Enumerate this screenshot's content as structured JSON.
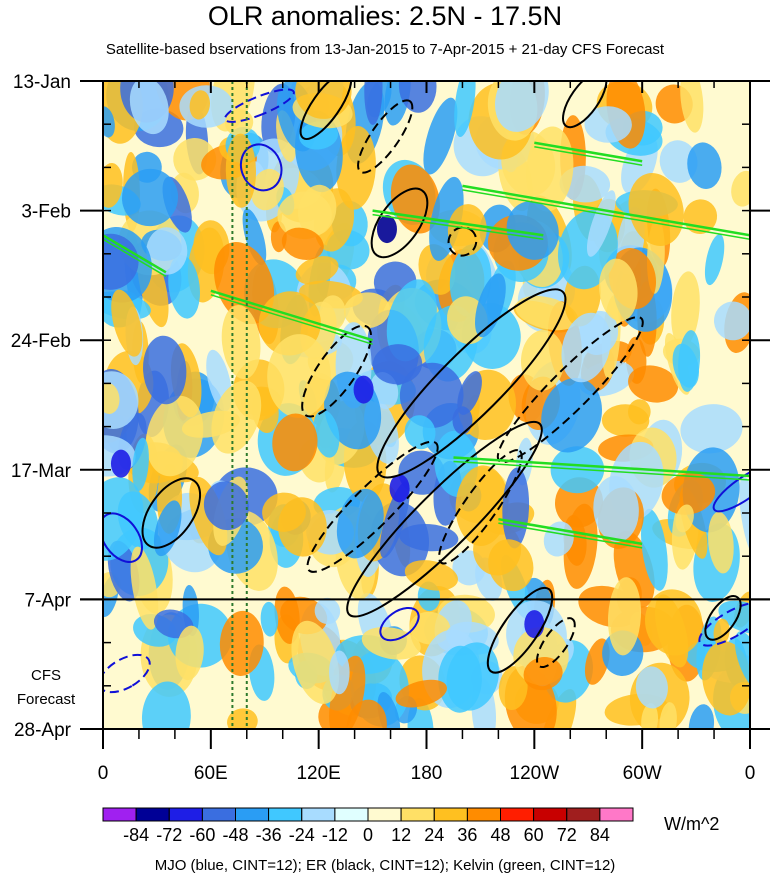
{
  "chart_data": {
    "type": "heatmap",
    "title": "OLR anomalies: 2.5N - 17.5N",
    "subtitle": "Satellite-based bservations from 13-Jan-2015 to 7-Apr-2015 + 21-day CFS Forecast",
    "x_ticks": [
      {
        "lon": 0,
        "label": "0"
      },
      {
        "lon": 60,
        "label": "60E"
      },
      {
        "lon": 120,
        "label": "120E"
      },
      {
        "lon": 180,
        "label": "180"
      },
      {
        "lon": 240,
        "label": "120W"
      },
      {
        "lon": 300,
        "label": "60W"
      },
      {
        "lon": 360,
        "label": "0"
      }
    ],
    "x_range": [
      0,
      360
    ],
    "y_ticks": [
      {
        "day": 0,
        "label": "13-Jan"
      },
      {
        "day": 21,
        "label": "3-Feb"
      },
      {
        "day": 42,
        "label": "24-Feb"
      },
      {
        "day": 63,
        "label": "17-Mar"
      },
      {
        "day": 84,
        "label": "7-Apr"
      },
      {
        "day": 105,
        "label": "28-Apr"
      }
    ],
    "y_range": [
      0,
      105
    ],
    "forecast_start_day": 84,
    "forecast_label_lines": [
      "CFS",
      "Forecast"
    ],
    "reference_lines_lon": [
      72,
      80
    ],
    "colorbar": {
      "levels": [
        "-84",
        "-72",
        "-60",
        "-48",
        "-36",
        "-24",
        "-12",
        "0",
        "12",
        "24",
        "36",
        "48",
        "60",
        "72",
        "84"
      ],
      "colors": [
        "#a020f0",
        "#000096",
        "#1e1ee6",
        "#3a6ee0",
        "#2a9df4",
        "#40c8ff",
        "#a8dcff",
        "#e0ffff",
        "#fffad0",
        "#ffe066",
        "#ffc020",
        "#ff8c00",
        "#ff1e00",
        "#c80000",
        "#a01e1e",
        "#ff78c8"
      ],
      "units": "W/m^2"
    },
    "contours": {
      "mjo": [
        {
          "lon": 88,
          "day": 14,
          "a_lon": 13,
          "a_day": 3.2,
          "angle": 0,
          "neg": false
        },
        {
          "lon": 10,
          "day": 74,
          "a_lon": 15,
          "a_day": 2.8,
          "angle": 0,
          "neg": false
        },
        {
          "lon": 165,
          "day": 88,
          "a_lon": 7,
          "a_day": 3.5,
          "angle": 0,
          "neg": false
        },
        {
          "lon": 357,
          "day": 66,
          "a_lon": 6,
          "a_day": 6,
          "angle": 0,
          "neg": false
        },
        {
          "lon": 87,
          "day": 4,
          "a_lon": 5,
          "a_day": 6,
          "angle": 0,
          "neg": true
        },
        {
          "lon": 12,
          "day": 96,
          "a_lon": 8,
          "a_day": 4.5,
          "angle": 0,
          "neg": true
        },
        {
          "lon": 350,
          "day": 88,
          "a_lon": 7,
          "a_day": 6,
          "angle": 0,
          "neg": true
        }
      ],
      "er": [
        {
          "lon": 165,
          "day": 23,
          "a_lon": 22,
          "a_day": 3.2,
          "angle": 0,
          "neg": false
        },
        {
          "lon": 124,
          "day": 4,
          "a_lon": 22,
          "a_day": 2.2,
          "angle": 0,
          "neg": false
        },
        {
          "lon": 268,
          "day": 3,
          "a_lon": 18,
          "a_day": 2.2,
          "angle": 0,
          "neg": false
        },
        {
          "lon": 205,
          "day": 49,
          "a_lon": 72,
          "a_day": 5,
          "angle": 0,
          "neg": false
        },
        {
          "lon": 190,
          "day": 71,
          "a_lon": 75,
          "a_day": 4.5,
          "angle": 0,
          "neg": false
        },
        {
          "lon": 38,
          "day": 70,
          "a_lon": 22,
          "a_day": 3.5,
          "angle": 0,
          "neg": false
        },
        {
          "lon": 232,
          "day": 89,
          "a_lon": 28,
          "a_day": 2.8,
          "angle": 0,
          "neg": false
        },
        {
          "lon": 345,
          "day": 87,
          "a_lon": 14,
          "a_day": 2,
          "angle": 0,
          "neg": false
        },
        {
          "lon": 157,
          "day": 9,
          "a_lon": 24,
          "a_day": 2.2,
          "angle": 0,
          "neg": true
        },
        {
          "lon": 200,
          "day": 26,
          "a_lon": 8,
          "a_day": 2.2,
          "angle": 0,
          "neg": true
        },
        {
          "lon": 130,
          "day": 47,
          "a_lon": 30,
          "a_day": 3,
          "angle": 0,
          "neg": true
        },
        {
          "lon": 260,
          "day": 50,
          "a_lon": 56,
          "a_day": 3.2,
          "angle": 0,
          "neg": true
        },
        {
          "lon": 150,
          "day": 69,
          "a_lon": 50,
          "a_day": 3.2,
          "angle": 0,
          "neg": true
        },
        {
          "lon": 210,
          "day": 69,
          "a_lon": 38,
          "a_day": 2.6,
          "angle": 0,
          "neg": true
        },
        {
          "lon": 252,
          "day": 91,
          "a_lon": 16,
          "a_day": 1.8,
          "angle": 0,
          "neg": true
        }
      ],
      "kelvin": [
        {
          "lon_start": 200,
          "day_start": 17,
          "lon_end": 360,
          "day_end": 25
        },
        {
          "lon_start": 150,
          "day_start": 21,
          "lon_end": 245,
          "day_end": 25
        },
        {
          "lon_start": 195,
          "day_start": 61,
          "lon_end": 360,
          "day_end": 64
        },
        {
          "lon_start": 220,
          "day_start": 71,
          "lon_end": 300,
          "day_end": 75
        },
        {
          "lon_start": 60,
          "day_start": 34,
          "lon_end": 150,
          "day_end": 42
        },
        {
          "lon_start": 0,
          "day_start": 25,
          "lon_end": 35,
          "day_end": 31
        },
        {
          "lon_start": 240,
          "day_start": 10,
          "lon_end": 300,
          "day_end": 13
        }
      ]
    }
  },
  "footer_note": "MJO (blue, CINT=12); ER (black, CINT=12); Kelvin (green, CINT=12)"
}
